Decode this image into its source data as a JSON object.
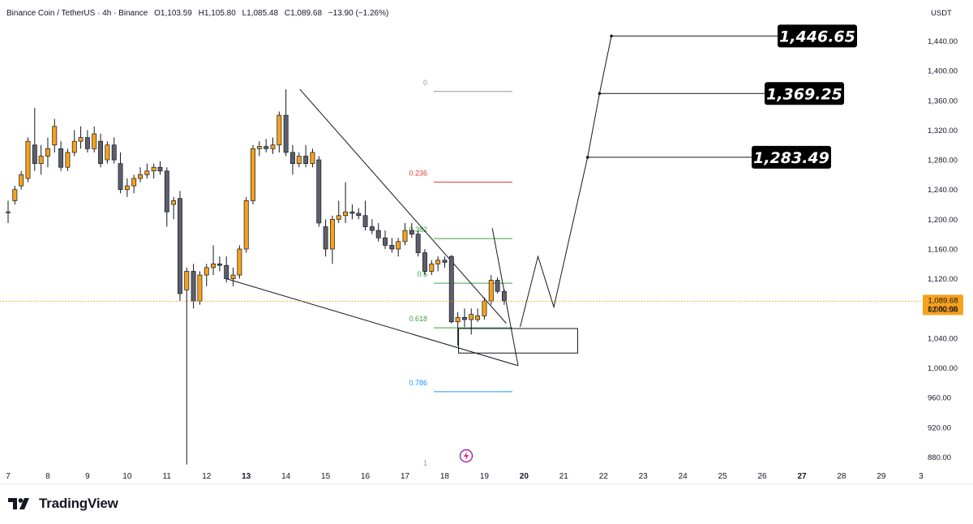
{
  "header": {
    "symbol": "Binance Coin / TetherUS · 4h · Binance",
    "open": "O1,103.59",
    "high": "H1,105.80",
    "low": "L1,085.48",
    "close": "C1,089.68",
    "change": "−13.90 (−1.26%)"
  },
  "currency": "USDT",
  "brand": {
    "name": "TradingView"
  },
  "current_price": {
    "label": "1,089.68",
    "countdown": "02:02:58",
    "color": "#f7a21b"
  },
  "colors": {
    "up": "#f7a21b",
    "down": "#5d606b",
    "fib_red": "#e53935",
    "fib_green": "#43a047",
    "fib_blue": "#2196f3",
    "fib_gray": "#9598a1"
  },
  "chart_data": {
    "type": "candlestick",
    "ylim": [
      860,
      1480
    ],
    "y_ticks": [
      {
        "value": 880,
        "label": "880.00"
      },
      {
        "value": 920,
        "label": "920.00"
      },
      {
        "value": 960,
        "label": "960.00"
      },
      {
        "value": 1000,
        "label": "1,000.00"
      },
      {
        "value": 1040,
        "label": "1,040.00"
      },
      {
        "value": 1080,
        "label": "1,080.00"
      },
      {
        "value": 1120,
        "label": "1,120.00"
      },
      {
        "value": 1160,
        "label": "1,160.00"
      },
      {
        "value": 1200,
        "label": "1,200.00"
      },
      {
        "value": 1240,
        "label": "1,240.00"
      },
      {
        "value": 1280,
        "label": "1,280.00"
      },
      {
        "value": 1320,
        "label": "1,320.00"
      },
      {
        "value": 1360,
        "label": "1,360.00"
      },
      {
        "value": 1400,
        "label": "1,400.00"
      },
      {
        "value": 1440,
        "label": "1,440.00"
      }
    ],
    "x_ticks": [
      {
        "t": 7,
        "label": "7",
        "bold": false
      },
      {
        "t": 8,
        "label": "8",
        "bold": false
      },
      {
        "t": 9,
        "label": "9",
        "bold": false
      },
      {
        "t": 10,
        "label": "10",
        "bold": false
      },
      {
        "t": 11,
        "label": "11",
        "bold": false
      },
      {
        "t": 12,
        "label": "12",
        "bold": false
      },
      {
        "t": 13,
        "label": "13",
        "bold": true
      },
      {
        "t": 14,
        "label": "14",
        "bold": false
      },
      {
        "t": 15,
        "label": "15",
        "bold": false
      },
      {
        "t": 16,
        "label": "16",
        "bold": false
      },
      {
        "t": 17,
        "label": "17",
        "bold": false
      },
      {
        "t": 18,
        "label": "18",
        "bold": false
      },
      {
        "t": 19,
        "label": "19",
        "bold": false
      },
      {
        "t": 20,
        "label": "20",
        "bold": true
      },
      {
        "t": 21,
        "label": "21",
        "bold": false
      },
      {
        "t": 22,
        "label": "22",
        "bold": false
      },
      {
        "t": 23,
        "label": "23",
        "bold": false
      },
      {
        "t": 24,
        "label": "24",
        "bold": false
      },
      {
        "t": 25,
        "label": "25",
        "bold": false
      },
      {
        "t": 26,
        "label": "26",
        "bold": false
      },
      {
        "t": 27,
        "label": "27",
        "bold": true
      },
      {
        "t": 28,
        "label": "28",
        "bold": false
      },
      {
        "t": 29,
        "label": "29",
        "bold": false
      },
      {
        "t": 30,
        "label": "3",
        "bold": false
      }
    ],
    "candles": [
      {
        "t": 7.0,
        "o": 1210,
        "h": 1225,
        "l": 1195,
        "c": 1210
      },
      {
        "t": 7.17,
        "o": 1225,
        "h": 1245,
        "l": 1220,
        "c": 1240
      },
      {
        "t": 7.33,
        "o": 1245,
        "h": 1265,
        "l": 1240,
        "c": 1260
      },
      {
        "t": 7.5,
        "o": 1255,
        "h": 1310,
        "l": 1250,
        "c": 1305
      },
      {
        "t": 7.67,
        "o": 1300,
        "h": 1350,
        "l": 1265,
        "c": 1275
      },
      {
        "t": 7.83,
        "o": 1275,
        "h": 1300,
        "l": 1260,
        "c": 1285
      },
      {
        "t": 8.0,
        "o": 1285,
        "h": 1310,
        "l": 1270,
        "c": 1295
      },
      {
        "t": 8.17,
        "o": 1300,
        "h": 1335,
        "l": 1290,
        "c": 1325
      },
      {
        "t": 8.33,
        "o": 1295,
        "h": 1305,
        "l": 1265,
        "c": 1270
      },
      {
        "t": 8.5,
        "o": 1270,
        "h": 1295,
        "l": 1265,
        "c": 1290
      },
      {
        "t": 8.67,
        "o": 1290,
        "h": 1320,
        "l": 1285,
        "c": 1305
      },
      {
        "t": 8.83,
        "o": 1305,
        "h": 1325,
        "l": 1295,
        "c": 1310
      },
      {
        "t": 9.0,
        "o": 1310,
        "h": 1320,
        "l": 1290,
        "c": 1295
      },
      {
        "t": 9.17,
        "o": 1295,
        "h": 1325,
        "l": 1290,
        "c": 1315
      },
      {
        "t": 9.33,
        "o": 1305,
        "h": 1315,
        "l": 1270,
        "c": 1275
      },
      {
        "t": 9.5,
        "o": 1280,
        "h": 1305,
        "l": 1275,
        "c": 1300
      },
      {
        "t": 9.67,
        "o": 1300,
        "h": 1310,
        "l": 1275,
        "c": 1280
      },
      {
        "t": 9.83,
        "o": 1275,
        "h": 1290,
        "l": 1235,
        "c": 1240
      },
      {
        "t": 10.0,
        "o": 1240,
        "h": 1255,
        "l": 1230,
        "c": 1245
      },
      {
        "t": 10.17,
        "o": 1245,
        "h": 1260,
        "l": 1235,
        "c": 1255
      },
      {
        "t": 10.33,
        "o": 1255,
        "h": 1270,
        "l": 1250,
        "c": 1260
      },
      {
        "t": 10.5,
        "o": 1260,
        "h": 1275,
        "l": 1255,
        "c": 1265
      },
      {
        "t": 10.67,
        "o": 1265,
        "h": 1275,
        "l": 1255,
        "c": 1270
      },
      {
        "t": 10.83,
        "o": 1270,
        "h": 1278,
        "l": 1260,
        "c": 1265
      },
      {
        "t": 11.0,
        "o": 1265,
        "h": 1270,
        "l": 1190,
        "c": 1210
      },
      {
        "t": 11.17,
        "o": 1220,
        "h": 1230,
        "l": 1200,
        "c": 1225
      },
      {
        "t": 11.33,
        "o": 1228,
        "h": 1238,
        "l": 1090,
        "c": 1100
      },
      {
        "t": 11.5,
        "o": 1105,
        "h": 1135,
        "l": 870,
        "c": 1130
      },
      {
        "t": 11.67,
        "o": 1130,
        "h": 1140,
        "l": 1080,
        "c": 1090
      },
      {
        "t": 11.83,
        "o": 1090,
        "h": 1130,
        "l": 1085,
        "c": 1125
      },
      {
        "t": 12.0,
        "o": 1125,
        "h": 1140,
        "l": 1110,
        "c": 1135
      },
      {
        "t": 12.17,
        "o": 1135,
        "h": 1165,
        "l": 1125,
        "c": 1140
      },
      {
        "t": 12.33,
        "o": 1140,
        "h": 1150,
        "l": 1130,
        "c": 1138
      },
      {
        "t": 12.5,
        "o": 1138,
        "h": 1150,
        "l": 1115,
        "c": 1120
      },
      {
        "t": 12.67,
        "o": 1120,
        "h": 1135,
        "l": 1110,
        "c": 1125
      },
      {
        "t": 12.83,
        "o": 1125,
        "h": 1165,
        "l": 1120,
        "c": 1160
      },
      {
        "t": 13.0,
        "o": 1160,
        "h": 1230,
        "l": 1155,
        "c": 1225
      },
      {
        "t": 13.17,
        "o": 1225,
        "h": 1300,
        "l": 1220,
        "c": 1295
      },
      {
        "t": 13.33,
        "o": 1295,
        "h": 1305,
        "l": 1285,
        "c": 1298
      },
      {
        "t": 13.5,
        "o": 1298,
        "h": 1308,
        "l": 1290,
        "c": 1295
      },
      {
        "t": 13.67,
        "o": 1295,
        "h": 1310,
        "l": 1288,
        "c": 1300
      },
      {
        "t": 13.83,
        "o": 1300,
        "h": 1345,
        "l": 1290,
        "c": 1340
      },
      {
        "t": 14.0,
        "o": 1340,
        "h": 1375,
        "l": 1285,
        "c": 1290
      },
      {
        "t": 14.17,
        "o": 1290,
        "h": 1300,
        "l": 1260,
        "c": 1275
      },
      {
        "t": 14.33,
        "o": 1275,
        "h": 1290,
        "l": 1270,
        "c": 1285
      },
      {
        "t": 14.5,
        "o": 1285,
        "h": 1300,
        "l": 1270,
        "c": 1275
      },
      {
        "t": 14.67,
        "o": 1275,
        "h": 1295,
        "l": 1270,
        "c": 1290
      },
      {
        "t": 14.83,
        "o": 1280,
        "h": 1285,
        "l": 1190,
        "c": 1195
      },
      {
        "t": 15.0,
        "o": 1190,
        "h": 1200,
        "l": 1150,
        "c": 1160
      },
      {
        "t": 15.17,
        "o": 1160,
        "h": 1205,
        "l": 1140,
        "c": 1200
      },
      {
        "t": 15.33,
        "o": 1200,
        "h": 1225,
        "l": 1195,
        "c": 1205
      },
      {
        "t": 15.5,
        "o": 1205,
        "h": 1250,
        "l": 1195,
        "c": 1210
      },
      {
        "t": 15.67,
        "o": 1210,
        "h": 1220,
        "l": 1200,
        "c": 1208
      },
      {
        "t": 15.83,
        "o": 1208,
        "h": 1215,
        "l": 1200,
        "c": 1205
      },
      {
        "t": 16.0,
        "o": 1205,
        "h": 1225,
        "l": 1185,
        "c": 1190
      },
      {
        "t": 16.17,
        "o": 1190,
        "h": 1200,
        "l": 1180,
        "c": 1185
      },
      {
        "t": 16.33,
        "o": 1185,
        "h": 1195,
        "l": 1170,
        "c": 1175
      },
      {
        "t": 16.5,
        "o": 1175,
        "h": 1185,
        "l": 1160,
        "c": 1165
      },
      {
        "t": 16.67,
        "o": 1165,
        "h": 1175,
        "l": 1155,
        "c": 1160
      },
      {
        "t": 16.83,
        "o": 1160,
        "h": 1175,
        "l": 1150,
        "c": 1170
      },
      {
        "t": 17.0,
        "o": 1170,
        "h": 1195,
        "l": 1165,
        "c": 1185
      },
      {
        "t": 17.17,
        "o": 1185,
        "h": 1195,
        "l": 1175,
        "c": 1180
      },
      {
        "t": 17.33,
        "o": 1180,
        "h": 1185,
        "l": 1150,
        "c": 1155
      },
      {
        "t": 17.5,
        "o": 1155,
        "h": 1160,
        "l": 1125,
        "c": 1130
      },
      {
        "t": 17.67,
        "o": 1130,
        "h": 1145,
        "l": 1125,
        "c": 1140
      },
      {
        "t": 17.83,
        "o": 1140,
        "h": 1150,
        "l": 1130,
        "c": 1145
      },
      {
        "t": 18.0,
        "o": 1145,
        "h": 1150,
        "l": 1135,
        "c": 1142
      },
      {
        "t": 18.17,
        "o": 1150,
        "h": 1152,
        "l": 1060,
        "c": 1062
      },
      {
        "t": 18.33,
        "o": 1062,
        "h": 1075,
        "l": 1030,
        "c": 1068
      },
      {
        "t": 18.5,
        "o": 1068,
        "h": 1080,
        "l": 1055,
        "c": 1065
      },
      {
        "t": 18.67,
        "o": 1065,
        "h": 1080,
        "l": 1045,
        "c": 1072
      },
      {
        "t": 18.83,
        "o": 1065,
        "h": 1080,
        "l": 1062,
        "c": 1070
      },
      {
        "t": 19.0,
        "o": 1070,
        "h": 1095,
        "l": 1065,
        "c": 1090
      },
      {
        "t": 19.17,
        "o": 1090,
        "h": 1125,
        "l": 1085,
        "c": 1118
      },
      {
        "t": 19.33,
        "o": 1118,
        "h": 1122,
        "l": 1100,
        "c": 1103
      },
      {
        "t": 19.5,
        "o": 1103,
        "h": 1106,
        "l": 1085,
        "c": 1090
      }
    ],
    "fib_levels": [
      {
        "label": "0",
        "value": 1372,
        "color": "#9598a1"
      },
      {
        "label": "0.236",
        "value": 1250,
        "color": "#e53935"
      },
      {
        "label": "0.382",
        "value": 1174,
        "color": "#43a047"
      },
      {
        "label": "0.5",
        "value": 1114,
        "color": "#43a047"
      },
      {
        "label": "0.618",
        "value": 1054,
        "color": "#43a047"
      },
      {
        "label": "0.786",
        "value": 968,
        "color": "#2196f3"
      },
      {
        "label": "1",
        "value": 858,
        "color": "#9598a1"
      }
    ],
    "targets": [
      {
        "label": "1,446.65",
        "value": 1446.65
      },
      {
        "label": "1,369.25",
        "value": 1369.25
      },
      {
        "label": "1,283.49",
        "value": 1283.49
      }
    ],
    "support_box": {
      "t1": 18.35,
      "t2": 21.35,
      "y_top": 1053,
      "y_bottom": 1020
    },
    "wedge": {
      "upper": [
        {
          "t": 14.35,
          "y": 1375
        },
        {
          "t": 19.55,
          "y": 1060
        }
      ],
      "lower": [
        {
          "t": 12.5,
          "y": 1120
        },
        {
          "t": 19.85,
          "y": 1003
        }
      ],
      "apex_close": [
        {
          "t": 19.2,
          "y": 1188
        },
        {
          "t": 19.85,
          "y": 1003
        }
      ]
    },
    "projection": [
      {
        "t": 19.9,
        "y": 1055
      },
      {
        "t": 20.35,
        "y": 1150
      },
      {
        "t": 20.75,
        "y": 1082
      },
      {
        "t": 21.6,
        "y": 1283.49
      },
      {
        "t": 21.9,
        "y": 1369.25
      },
      {
        "t": 22.2,
        "y": 1446.65
      }
    ],
    "current_value": 1089.68
  }
}
